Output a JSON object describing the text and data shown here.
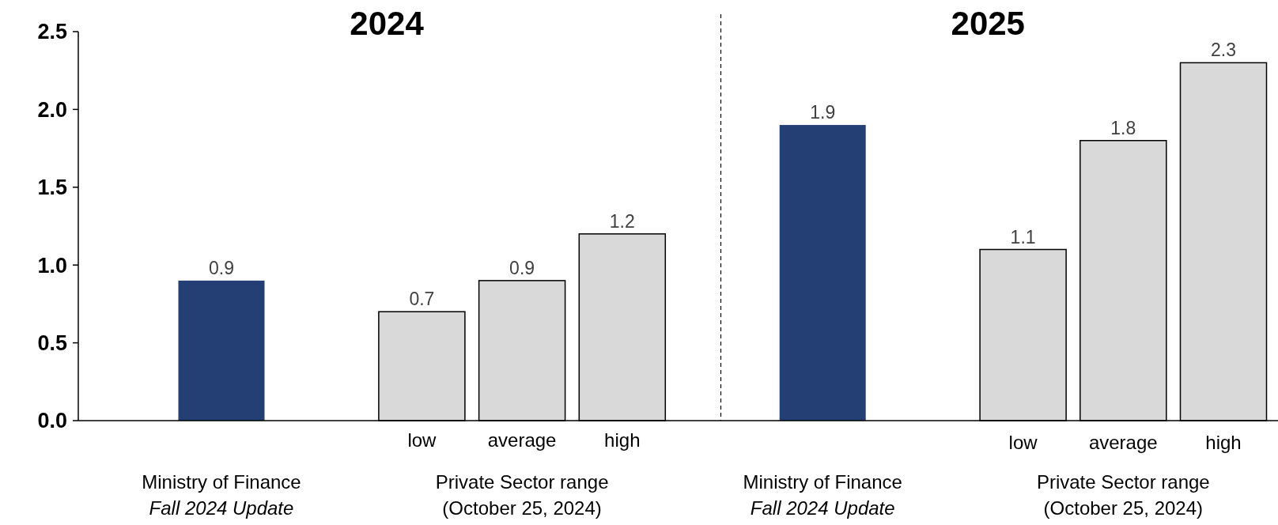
{
  "chart_data": {
    "type": "bar",
    "categories": [
      null,
      null,
      "low",
      "average",
      "high",
      null,
      null,
      null,
      "low",
      "average",
      "high"
    ],
    "values": [
      0.9,
      null,
      0.7,
      0.9,
      1.2,
      null,
      1.9,
      null,
      1.1,
      1.8,
      2.3
    ],
    "colors": [
      "#243f73",
      null,
      "#d9d9d9",
      "#d9d9d9",
      "#d9d9d9",
      null,
      "#243f73",
      null,
      "#d9d9d9",
      "#d9d9d9",
      "#d9d9d9"
    ],
    "ylim": [
      0,
      2.5
    ],
    "yticks": [
      {
        "value": 0,
        "label": "0.0"
      },
      0.5,
      {
        "value": 1,
        "label": "1.0"
      },
      1.5,
      {
        "value": 2,
        "label": "2.0"
      },
      2.5
    ],
    "data_labels": true,
    "annotations": [
      "2024",
      "2025",
      "Ministry of Finance\nFall 2024 Update",
      "Private Sector range\n(October 25, 2024)",
      "Ministry of Finance\nFall 2024 Update",
      "Private Sector range\n(October 25, 2024)"
    ]
  }
}
